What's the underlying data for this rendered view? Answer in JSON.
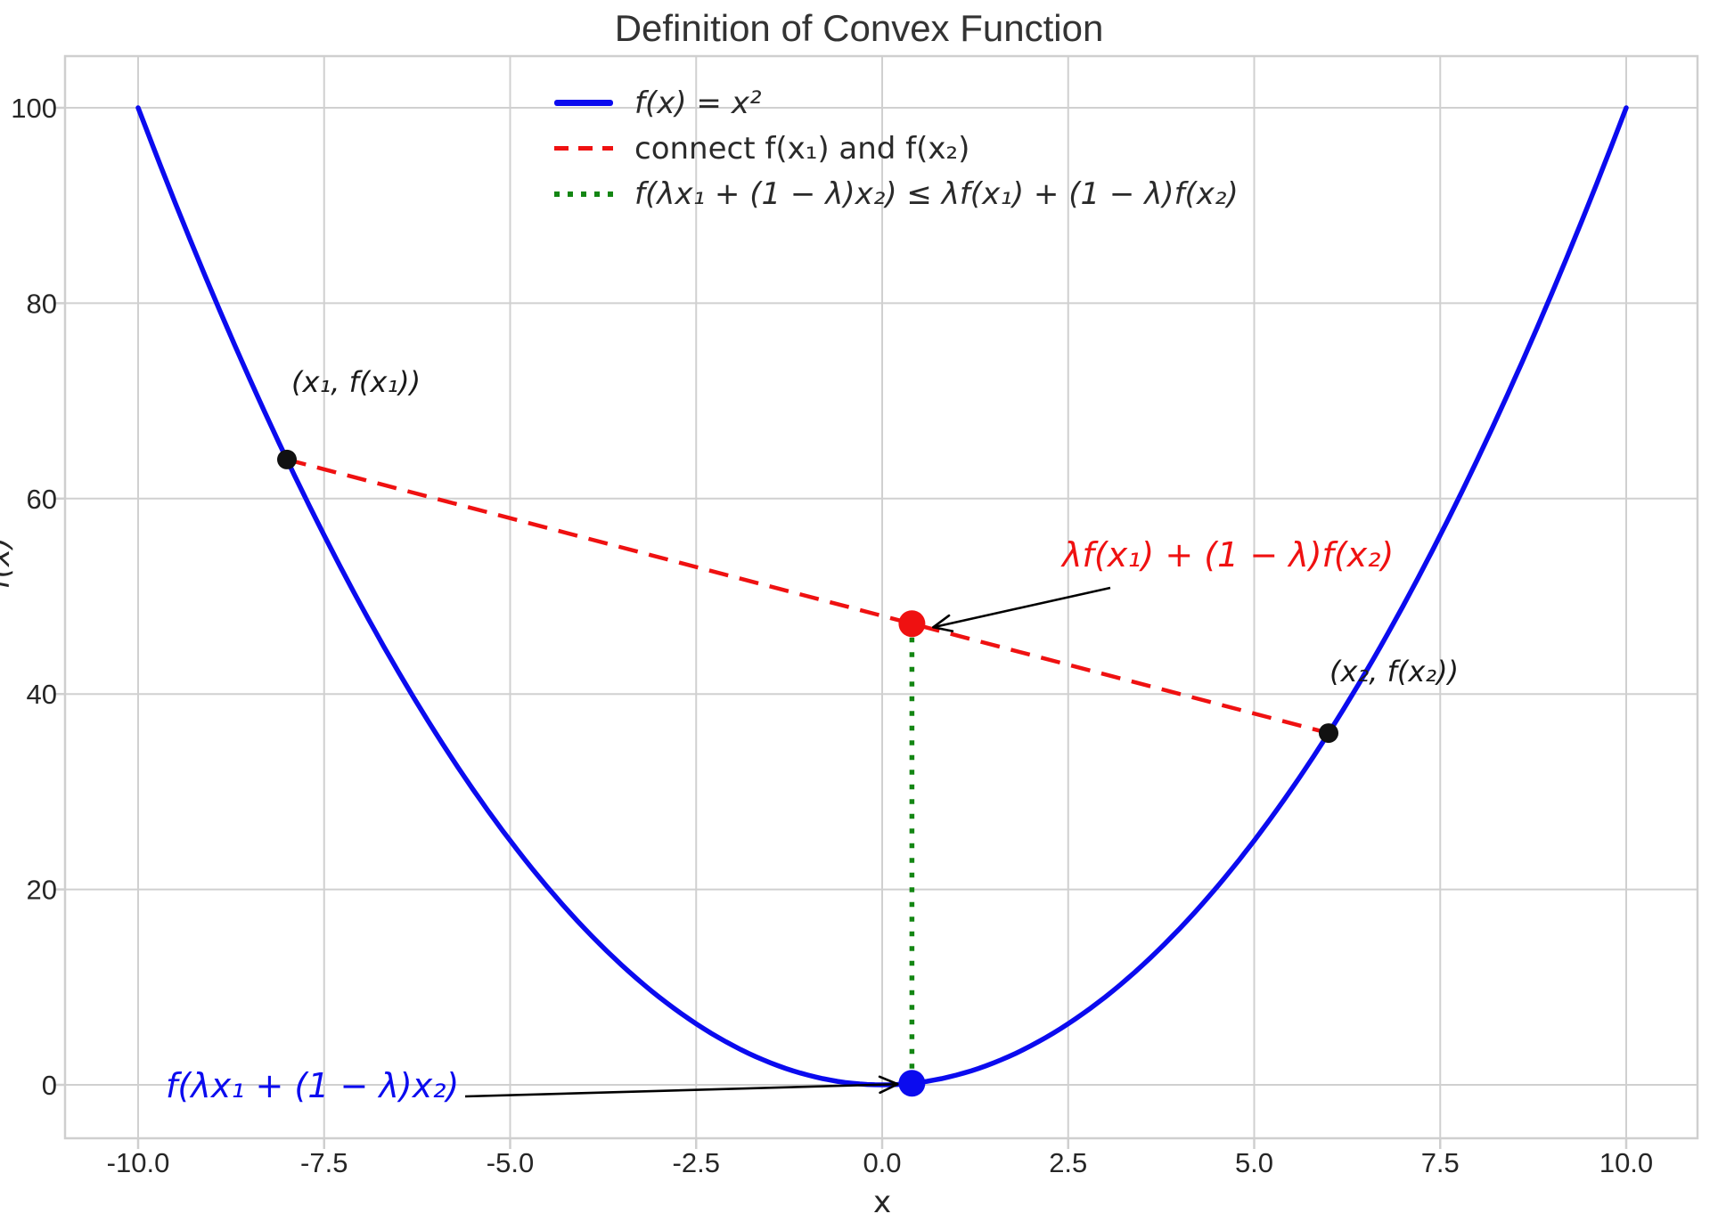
{
  "chart_data": {
    "type": "line",
    "title": "Definition of Convex Function",
    "xlabel": "x",
    "ylabel": "f(x)",
    "xlim": [
      -11,
      11
    ],
    "ylim": [
      -6,
      105
    ],
    "x_ticks": [
      -10.0,
      -7.5,
      -5.0,
      -2.5,
      0.0,
      2.5,
      5.0,
      7.5,
      10.0
    ],
    "x_tick_labels": [
      "-10.0",
      "-7.5",
      "-5.0",
      "-2.5",
      "0.0",
      "2.5",
      "5.0",
      "7.5",
      "10.0"
    ],
    "y_ticks": [
      0,
      20,
      40,
      60,
      80,
      100
    ],
    "y_tick_labels": [
      "0",
      "20",
      "40",
      "60",
      "80",
      "100"
    ],
    "grid": true,
    "legend_position": "upper center, frameless",
    "series": [
      {
        "name": "f(x) = x²",
        "style": "solid",
        "color": "#0b0bef",
        "formula": "y = x^2",
        "x_range": [
          -10,
          10
        ]
      },
      {
        "name": "connect f(x₁) and f(x₂)",
        "style": "dashed",
        "color": "#ef1111",
        "points": [
          [
            -8,
            64
          ],
          [
            6,
            36
          ]
        ]
      },
      {
        "name": "f(λx₁ + (1 − λ)x₂) ≤ λf(x₁) + (1 − λ)f(x₂)",
        "style": "dotted",
        "color": "#138613",
        "points": [
          [
            0.4,
            0.16
          ],
          [
            0.4,
            47.2
          ]
        ]
      }
    ],
    "markers": [
      {
        "label": "(x₁, f(x₁))",
        "x": -8,
        "y": 64,
        "color": "#111111",
        "radius": 11
      },
      {
        "label": "(x₂, f(x₂))",
        "x": 6,
        "y": 36,
        "color": "#111111",
        "radius": 11
      },
      {
        "label": "λf(x₁) + (1 − λ)f(x₂)",
        "x": 0.4,
        "y": 47.2,
        "color": "#ef1111",
        "radius": 15
      },
      {
        "label": "f(λx₁ + (1 − λ)x₂)",
        "x": 0.4,
        "y": 0.16,
        "color": "#0b0bef",
        "radius": 15
      }
    ],
    "grid_color": "#d0d0d0",
    "spine_color": "#cfcfcf",
    "arrow_color": "#000000",
    "tick_label_color": "#262626"
  }
}
